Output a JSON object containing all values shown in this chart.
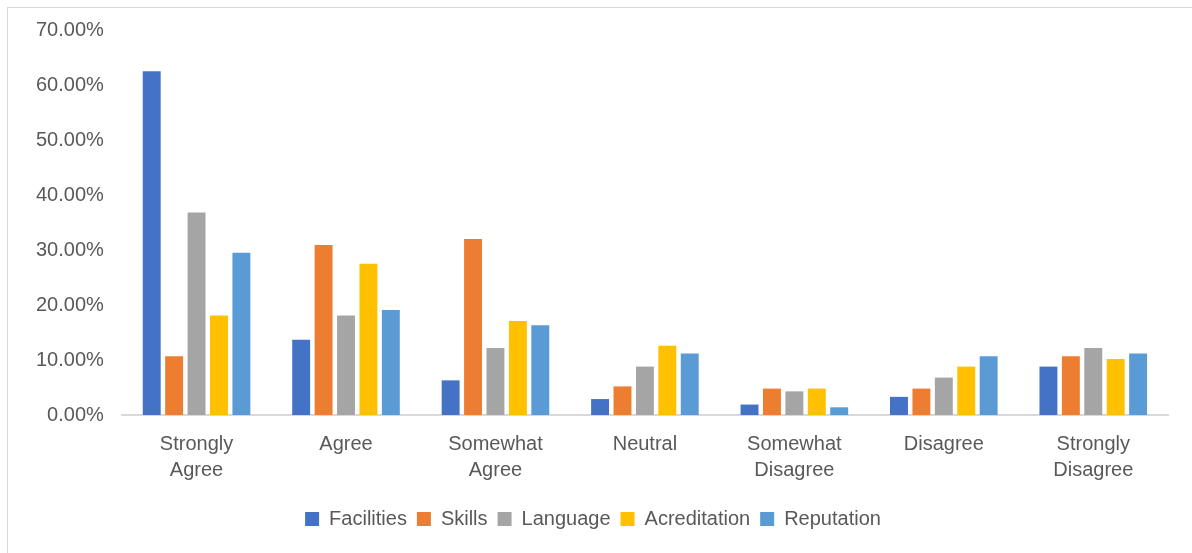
{
  "chart_data": {
    "type": "bar",
    "categories": [
      "Strongly Agree",
      "Agree",
      "Somewhat Agree",
      "Neutral",
      "Somewhat Disagree",
      "Disagree",
      "Strongly Disagree"
    ],
    "series": [
      {
        "name": "Facilities",
        "color": "#4472c4",
        "values": [
          62.5,
          13.7,
          6.3,
          2.9,
          1.9,
          3.3,
          8.8
        ]
      },
      {
        "name": "Skills",
        "color": "#ed7d31",
        "values": [
          10.7,
          30.9,
          32.0,
          5.2,
          4.8,
          4.8,
          10.7
        ]
      },
      {
        "name": "Language",
        "color": "#a5a5a5",
        "values": [
          36.8,
          18.1,
          12.2,
          8.8,
          4.3,
          6.8,
          12.2
        ]
      },
      {
        "name": "Acreditation",
        "color": "#ffc000",
        "values": [
          18.1,
          27.5,
          17.1,
          12.6,
          4.8,
          8.8,
          10.2
        ]
      },
      {
        "name": "Reputation",
        "color": "#5b9bd5",
        "values": [
          29.5,
          19.1,
          16.3,
          11.2,
          1.4,
          10.7,
          11.2
        ]
      }
    ],
    "ylim": [
      0,
      70
    ],
    "yticks": [
      {
        "value": 0,
        "label": "0.00%"
      },
      {
        "value": 10,
        "label": "10.00%"
      },
      {
        "value": 20,
        "label": "20.00%"
      },
      {
        "value": 30,
        "label": "30.00%"
      },
      {
        "value": 40,
        "label": "40.00%"
      },
      {
        "value": 50,
        "label": "50.00%"
      },
      {
        "value": 60,
        "label": "60.00%"
      },
      {
        "value": 70,
        "label": "70.00%"
      }
    ],
    "legend": "bottom"
  }
}
